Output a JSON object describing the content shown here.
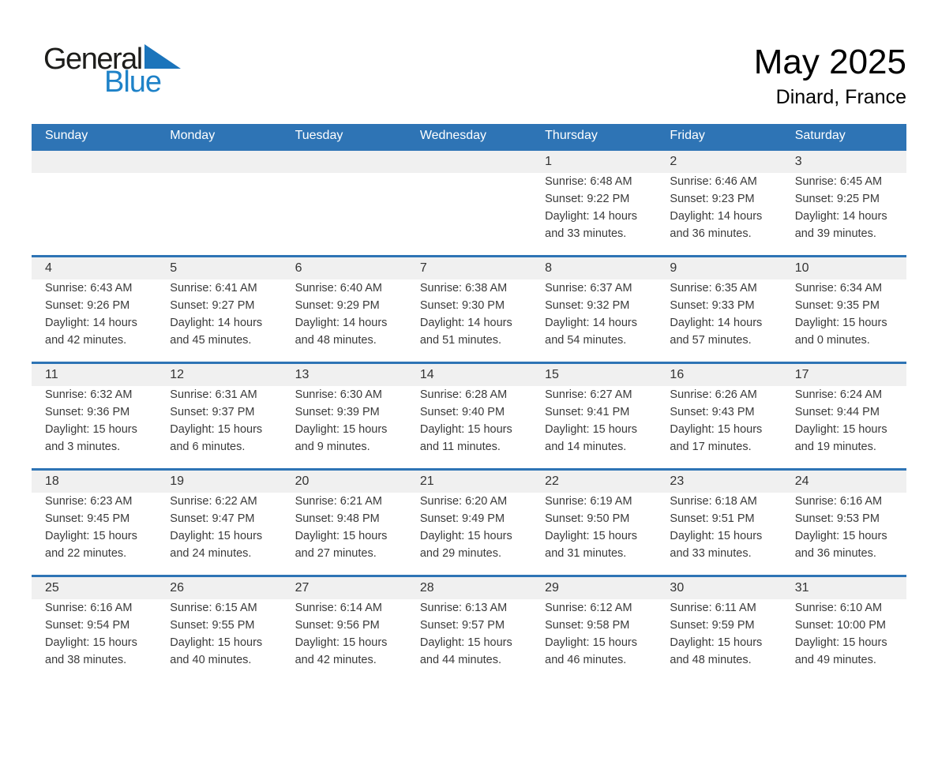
{
  "logo": {
    "text_general": "General",
    "text_blue": "Blue"
  },
  "header": {
    "title": "May 2025",
    "location": "Dinard, France"
  },
  "colors": {
    "header_blue": "#2e74b5",
    "row_separator_blue": "#2e74b5",
    "logo_blue": "#1e82c8",
    "logo_triangle_blue": "#1b74bb",
    "day_band_gray": "#f0f0f0"
  },
  "weekday_headers": [
    "Sunday",
    "Monday",
    "Tuesday",
    "Wednesday",
    "Thursday",
    "Friday",
    "Saturday"
  ],
  "weeks": [
    [
      {
        "day": ""
      },
      {
        "day": ""
      },
      {
        "day": ""
      },
      {
        "day": ""
      },
      {
        "day": "1",
        "sunrise": "Sunrise: 6:48 AM",
        "sunset": "Sunset: 9:22 PM",
        "daylight_line1": "Daylight: 14 hours",
        "daylight_line2": "and 33 minutes."
      },
      {
        "day": "2",
        "sunrise": "Sunrise: 6:46 AM",
        "sunset": "Sunset: 9:23 PM",
        "daylight_line1": "Daylight: 14 hours",
        "daylight_line2": "and 36 minutes."
      },
      {
        "day": "3",
        "sunrise": "Sunrise: 6:45 AM",
        "sunset": "Sunset: 9:25 PM",
        "daylight_line1": "Daylight: 14 hours",
        "daylight_line2": "and 39 minutes."
      }
    ],
    [
      {
        "day": "4",
        "sunrise": "Sunrise: 6:43 AM",
        "sunset": "Sunset: 9:26 PM",
        "daylight_line1": "Daylight: 14 hours",
        "daylight_line2": "and 42 minutes."
      },
      {
        "day": "5",
        "sunrise": "Sunrise: 6:41 AM",
        "sunset": "Sunset: 9:27 PM",
        "daylight_line1": "Daylight: 14 hours",
        "daylight_line2": "and 45 minutes."
      },
      {
        "day": "6",
        "sunrise": "Sunrise: 6:40 AM",
        "sunset": "Sunset: 9:29 PM",
        "daylight_line1": "Daylight: 14 hours",
        "daylight_line2": "and 48 minutes."
      },
      {
        "day": "7",
        "sunrise": "Sunrise: 6:38 AM",
        "sunset": "Sunset: 9:30 PM",
        "daylight_line1": "Daylight: 14 hours",
        "daylight_line2": "and 51 minutes."
      },
      {
        "day": "8",
        "sunrise": "Sunrise: 6:37 AM",
        "sunset": "Sunset: 9:32 PM",
        "daylight_line1": "Daylight: 14 hours",
        "daylight_line2": "and 54 minutes."
      },
      {
        "day": "9",
        "sunrise": "Sunrise: 6:35 AM",
        "sunset": "Sunset: 9:33 PM",
        "daylight_line1": "Daylight: 14 hours",
        "daylight_line2": "and 57 minutes."
      },
      {
        "day": "10",
        "sunrise": "Sunrise: 6:34 AM",
        "sunset": "Sunset: 9:35 PM",
        "daylight_line1": "Daylight: 15 hours",
        "daylight_line2": "and 0 minutes."
      }
    ],
    [
      {
        "day": "11",
        "sunrise": "Sunrise: 6:32 AM",
        "sunset": "Sunset: 9:36 PM",
        "daylight_line1": "Daylight: 15 hours",
        "daylight_line2": "and 3 minutes."
      },
      {
        "day": "12",
        "sunrise": "Sunrise: 6:31 AM",
        "sunset": "Sunset: 9:37 PM",
        "daylight_line1": "Daylight: 15 hours",
        "daylight_line2": "and 6 minutes."
      },
      {
        "day": "13",
        "sunrise": "Sunrise: 6:30 AM",
        "sunset": "Sunset: 9:39 PM",
        "daylight_line1": "Daylight: 15 hours",
        "daylight_line2": "and 9 minutes."
      },
      {
        "day": "14",
        "sunrise": "Sunrise: 6:28 AM",
        "sunset": "Sunset: 9:40 PM",
        "daylight_line1": "Daylight: 15 hours",
        "daylight_line2": "and 11 minutes."
      },
      {
        "day": "15",
        "sunrise": "Sunrise: 6:27 AM",
        "sunset": "Sunset: 9:41 PM",
        "daylight_line1": "Daylight: 15 hours",
        "daylight_line2": "and 14 minutes."
      },
      {
        "day": "16",
        "sunrise": "Sunrise: 6:26 AM",
        "sunset": "Sunset: 9:43 PM",
        "daylight_line1": "Daylight: 15 hours",
        "daylight_line2": "and 17 minutes."
      },
      {
        "day": "17",
        "sunrise": "Sunrise: 6:24 AM",
        "sunset": "Sunset: 9:44 PM",
        "daylight_line1": "Daylight: 15 hours",
        "daylight_line2": "and 19 minutes."
      }
    ],
    [
      {
        "day": "18",
        "sunrise": "Sunrise: 6:23 AM",
        "sunset": "Sunset: 9:45 PM",
        "daylight_line1": "Daylight: 15 hours",
        "daylight_line2": "and 22 minutes."
      },
      {
        "day": "19",
        "sunrise": "Sunrise: 6:22 AM",
        "sunset": "Sunset: 9:47 PM",
        "daylight_line1": "Daylight: 15 hours",
        "daylight_line2": "and 24 minutes."
      },
      {
        "day": "20",
        "sunrise": "Sunrise: 6:21 AM",
        "sunset": "Sunset: 9:48 PM",
        "daylight_line1": "Daylight: 15 hours",
        "daylight_line2": "and 27 minutes."
      },
      {
        "day": "21",
        "sunrise": "Sunrise: 6:20 AM",
        "sunset": "Sunset: 9:49 PM",
        "daylight_line1": "Daylight: 15 hours",
        "daylight_line2": "and 29 minutes."
      },
      {
        "day": "22",
        "sunrise": "Sunrise: 6:19 AM",
        "sunset": "Sunset: 9:50 PM",
        "daylight_line1": "Daylight: 15 hours",
        "daylight_line2": "and 31 minutes."
      },
      {
        "day": "23",
        "sunrise": "Sunrise: 6:18 AM",
        "sunset": "Sunset: 9:51 PM",
        "daylight_line1": "Daylight: 15 hours",
        "daylight_line2": "and 33 minutes."
      },
      {
        "day": "24",
        "sunrise": "Sunrise: 6:16 AM",
        "sunset": "Sunset: 9:53 PM",
        "daylight_line1": "Daylight: 15 hours",
        "daylight_line2": "and 36 minutes."
      }
    ],
    [
      {
        "day": "25",
        "sunrise": "Sunrise: 6:16 AM",
        "sunset": "Sunset: 9:54 PM",
        "daylight_line1": "Daylight: 15 hours",
        "daylight_line2": "and 38 minutes."
      },
      {
        "day": "26",
        "sunrise": "Sunrise: 6:15 AM",
        "sunset": "Sunset: 9:55 PM",
        "daylight_line1": "Daylight: 15 hours",
        "daylight_line2": "and 40 minutes."
      },
      {
        "day": "27",
        "sunrise": "Sunrise: 6:14 AM",
        "sunset": "Sunset: 9:56 PM",
        "daylight_line1": "Daylight: 15 hours",
        "daylight_line2": "and 42 minutes."
      },
      {
        "day": "28",
        "sunrise": "Sunrise: 6:13 AM",
        "sunset": "Sunset: 9:57 PM",
        "daylight_line1": "Daylight: 15 hours",
        "daylight_line2": "and 44 minutes."
      },
      {
        "day": "29",
        "sunrise": "Sunrise: 6:12 AM",
        "sunset": "Sunset: 9:58 PM",
        "daylight_line1": "Daylight: 15 hours",
        "daylight_line2": "and 46 minutes."
      },
      {
        "day": "30",
        "sunrise": "Sunrise: 6:11 AM",
        "sunset": "Sunset: 9:59 PM",
        "daylight_line1": "Daylight: 15 hours",
        "daylight_line2": "and 48 minutes."
      },
      {
        "day": "31",
        "sunrise": "Sunrise: 6:10 AM",
        "sunset": "Sunset: 10:00 PM",
        "daylight_line1": "Daylight: 15 hours",
        "daylight_line2": "and 49 minutes."
      }
    ]
  ]
}
